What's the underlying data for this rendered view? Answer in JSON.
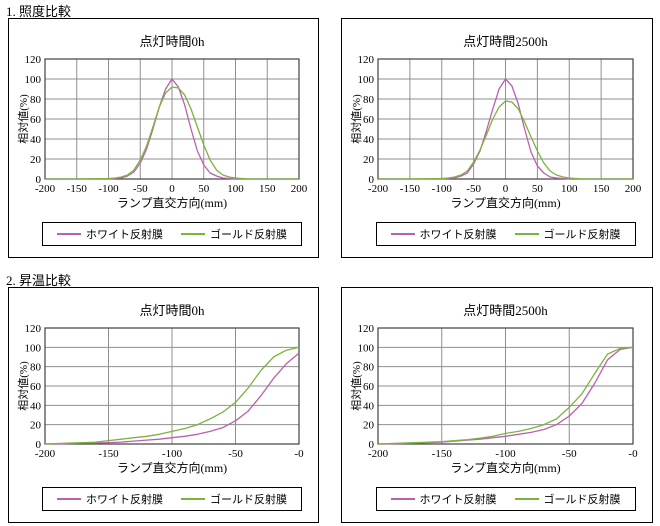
{
  "page": {
    "section1_label": "1. 照度比較",
    "section2_label": "2. 昇温比較"
  },
  "colors": {
    "grid": "#8f8f8f",
    "axis": "#404040",
    "box_border": "#000000",
    "white_film": "#bc5fae",
    "gold_film": "#7ab43e"
  },
  "chart_data": [
    {
      "type": "line",
      "title": "点灯時間0h",
      "section": "照度比較",
      "xlabel": "ランプ直交方向(mm)",
      "ylabel": "相対値(%)",
      "xlim": [
        -200,
        200
      ],
      "ylim": [
        0,
        120
      ],
      "xticks": [
        -200,
        -150,
        -100,
        -50,
        0,
        50,
        100,
        150,
        200
      ],
      "xtick_labels": [
        "-200",
        "-150",
        "-100",
        "-50",
        "0",
        "50",
        "100",
        "150",
        "200"
      ],
      "yticks": [
        0,
        20,
        40,
        60,
        80,
        100,
        120
      ],
      "grid": true,
      "legend_position": "bottom",
      "series": [
        {
          "name": "ホワイト反射膜",
          "color": "#bc5fae",
          "points": [
            [
              -200,
              0
            ],
            [
              -150,
              0
            ],
            [
              -100,
              0
            ],
            [
              -90,
              0.5
            ],
            [
              -80,
              1
            ],
            [
              -70,
              3
            ],
            [
              -60,
              7
            ],
            [
              -50,
              16
            ],
            [
              -40,
              30
            ],
            [
              -30,
              50
            ],
            [
              -20,
              72
            ],
            [
              -10,
              90
            ],
            [
              0,
              100
            ],
            [
              10,
              92
            ],
            [
              20,
              74
            ],
            [
              30,
              50
            ],
            [
              40,
              28
            ],
            [
              50,
              14
            ],
            [
              60,
              6
            ],
            [
              70,
              3
            ],
            [
              80,
              1
            ],
            [
              90,
              0.5
            ],
            [
              100,
              0
            ],
            [
              150,
              0
            ],
            [
              200,
              0
            ]
          ]
        },
        {
          "name": "ゴールド反射膜",
          "color": "#7ab43e",
          "points": [
            [
              -200,
              0
            ],
            [
              -150,
              0
            ],
            [
              -100,
              0.5
            ],
            [
              -90,
              1
            ],
            [
              -80,
              2
            ],
            [
              -70,
              4
            ],
            [
              -60,
              9
            ],
            [
              -50,
              19
            ],
            [
              -40,
              33
            ],
            [
              -30,
              52
            ],
            [
              -20,
              72
            ],
            [
              -10,
              86
            ],
            [
              0,
              92
            ],
            [
              10,
              91
            ],
            [
              20,
              84
            ],
            [
              30,
              70
            ],
            [
              40,
              52
            ],
            [
              50,
              34
            ],
            [
              60,
              19
            ],
            [
              70,
              9
            ],
            [
              80,
              4
            ],
            [
              90,
              2
            ],
            [
              100,
              1
            ],
            [
              110,
              0.5
            ],
            [
              120,
              0
            ],
            [
              150,
              0
            ],
            [
              200,
              0
            ]
          ]
        }
      ]
    },
    {
      "type": "line",
      "title": "点灯時間2500h",
      "section": "照度比較",
      "xlabel": "ランプ直交方向(mm)",
      "ylabel": "相対値(%)",
      "xlim": [
        -200,
        200
      ],
      "ylim": [
        0,
        120
      ],
      "xticks": [
        -200,
        -150,
        -100,
        -50,
        0,
        50,
        100,
        150,
        200
      ],
      "xtick_labels": [
        "-200",
        "-150",
        "-100",
        "-50",
        "0",
        "50",
        "100",
        "150",
        "200"
      ],
      "yticks": [
        0,
        20,
        40,
        60,
        80,
        100,
        120
      ],
      "grid": true,
      "legend_position": "bottom",
      "series": [
        {
          "name": "ホワイト反射膜",
          "color": "#bc5fae",
          "points": [
            [
              -200,
              0
            ],
            [
              -150,
              0
            ],
            [
              -100,
              0
            ],
            [
              -90,
              0.5
            ],
            [
              -80,
              1
            ],
            [
              -70,
              3
            ],
            [
              -60,
              6
            ],
            [
              -50,
              15
            ],
            [
              -40,
              28
            ],
            [
              -30,
              48
            ],
            [
              -20,
              70
            ],
            [
              -10,
              90
            ],
            [
              0,
              100
            ],
            [
              10,
              93
            ],
            [
              20,
              75
            ],
            [
              30,
              50
            ],
            [
              40,
              27
            ],
            [
              50,
              13
            ],
            [
              60,
              6
            ],
            [
              70,
              2
            ],
            [
              80,
              1
            ],
            [
              90,
              0.5
            ],
            [
              100,
              0
            ],
            [
              150,
              0
            ],
            [
              200,
              0
            ]
          ]
        },
        {
          "name": "ゴールド反射膜",
          "color": "#7ab43e",
          "points": [
            [
              -200,
              0
            ],
            [
              -150,
              0
            ],
            [
              -100,
              0.5
            ],
            [
              -90,
              1
            ],
            [
              -80,
              2
            ],
            [
              -70,
              4
            ],
            [
              -60,
              8
            ],
            [
              -50,
              17
            ],
            [
              -40,
              29
            ],
            [
              -30,
              44
            ],
            [
              -20,
              60
            ],
            [
              -10,
              72
            ],
            [
              0,
              78
            ],
            [
              10,
              77
            ],
            [
              20,
              70
            ],
            [
              30,
              57
            ],
            [
              40,
              42
            ],
            [
              50,
              28
            ],
            [
              60,
              16
            ],
            [
              70,
              8
            ],
            [
              80,
              4
            ],
            [
              90,
              2
            ],
            [
              100,
              1
            ],
            [
              110,
              0.5
            ],
            [
              120,
              0
            ],
            [
              150,
              0
            ],
            [
              200,
              0
            ]
          ]
        }
      ]
    },
    {
      "type": "line",
      "title": "点灯時間0h",
      "section": "昇温比較",
      "xlabel": "ランプ直交方向(mm)",
      "ylabel": "相対値(%)",
      "xlim": [
        -200,
        0
      ],
      "ylim": [
        0,
        120
      ],
      "xticks": [
        -200,
        -150,
        -100,
        -50,
        0
      ],
      "xtick_labels": [
        "-200",
        "-150",
        "-100",
        "-50",
        "-0"
      ],
      "yticks": [
        0,
        20,
        40,
        60,
        80,
        100,
        120
      ],
      "grid": true,
      "legend_position": "bottom",
      "series": [
        {
          "name": "ホワイト反射膜",
          "color": "#bc5fae",
          "points": [
            [
              -200,
              0
            ],
            [
              -190,
              0
            ],
            [
              -180,
              0.5
            ],
            [
              -170,
              1
            ],
            [
              -160,
              1
            ],
            [
              -150,
              1.5
            ],
            [
              -140,
              2
            ],
            [
              -130,
              3
            ],
            [
              -120,
              4
            ],
            [
              -110,
              5
            ],
            [
              -100,
              6.5
            ],
            [
              -90,
              8
            ],
            [
              -80,
              10
            ],
            [
              -70,
              13
            ],
            [
              -60,
              17
            ],
            [
              -50,
              24
            ],
            [
              -40,
              34
            ],
            [
              -30,
              50
            ],
            [
              -20,
              68
            ],
            [
              -10,
              83
            ],
            [
              0,
              94
            ]
          ]
        },
        {
          "name": "ゴールド反射膜",
          "color": "#7ab43e",
          "points": [
            [
              -200,
              0
            ],
            [
              -190,
              0.5
            ],
            [
              -180,
              1
            ],
            [
              -170,
              1.5
            ],
            [
              -160,
              2
            ],
            [
              -150,
              3.5
            ],
            [
              -140,
              5
            ],
            [
              -130,
              6.5
            ],
            [
              -120,
              8
            ],
            [
              -110,
              10
            ],
            [
              -100,
              13
            ],
            [
              -90,
              16
            ],
            [
              -80,
              20
            ],
            [
              -70,
              26
            ],
            [
              -60,
              33
            ],
            [
              -50,
              43
            ],
            [
              -40,
              58
            ],
            [
              -30,
              76
            ],
            [
              -20,
              90
            ],
            [
              -10,
              97
            ],
            [
              0,
              100
            ]
          ]
        }
      ]
    },
    {
      "type": "line",
      "title": "点灯時間2500h",
      "section": "昇温比較",
      "xlabel": "ランプ直交方向(mm)",
      "ylabel": "相対値(%)",
      "xlim": [
        -200,
        0
      ],
      "ylim": [
        0,
        120
      ],
      "xticks": [
        -200,
        -150,
        -100,
        -50,
        0
      ],
      "xtick_labels": [
        "-200",
        "-150",
        "-100",
        "-50",
        "-0"
      ],
      "yticks": [
        0,
        20,
        40,
        60,
        80,
        100,
        120
      ],
      "grid": true,
      "legend_position": "bottom",
      "series": [
        {
          "name": "ホワイト反射膜",
          "color": "#bc5fae",
          "points": [
            [
              -200,
              0
            ],
            [
              -180,
              0.5
            ],
            [
              -160,
              1.5
            ],
            [
              -150,
              2
            ],
            [
              -140,
              3
            ],
            [
              -130,
              4
            ],
            [
              -120,
              5
            ],
            [
              -110,
              6.5
            ],
            [
              -100,
              8
            ],
            [
              -90,
              10
            ],
            [
              -80,
              12
            ],
            [
              -70,
              15
            ],
            [
              -60,
              20
            ],
            [
              -50,
              29
            ],
            [
              -40,
              42
            ],
            [
              -30,
              63
            ],
            [
              -20,
              87
            ],
            [
              -10,
              98
            ],
            [
              0,
              100
            ]
          ]
        },
        {
          "name": "ゴールド反射膜",
          "color": "#7ab43e",
          "points": [
            [
              -200,
              0
            ],
            [
              -180,
              1
            ],
            [
              -160,
              2
            ],
            [
              -150,
              2.5
            ],
            [
              -140,
              3.5
            ],
            [
              -130,
              4.5
            ],
            [
              -120,
              6
            ],
            [
              -110,
              8
            ],
            [
              -100,
              11
            ],
            [
              -90,
              13
            ],
            [
              -80,
              16
            ],
            [
              -70,
              20
            ],
            [
              -60,
              26
            ],
            [
              -50,
              38
            ],
            [
              -40,
              52
            ],
            [
              -30,
              73
            ],
            [
              -20,
              93
            ],
            [
              -10,
              99
            ],
            [
              0,
              100
            ]
          ]
        }
      ]
    }
  ]
}
